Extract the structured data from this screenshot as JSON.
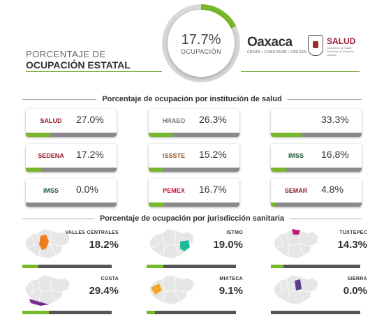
{
  "header": {
    "title_line1": "PORCENTAJE DE",
    "title_line2": "OCUPACIÓN ESTATAL",
    "total_value": "17.7%",
    "total_label": "OCUPACIÓN",
    "total_fraction": 0.177,
    "logo_oaxaca": "Oaxaca",
    "logo_oaxaca_tag": "CREAR • CONSTRUIR • CRECER",
    "logo_salud": "SALUD",
    "logo_salud_sub": "Secretaría de Salud Servicios de Salud de Oaxaca"
  },
  "institutions_heading": "Porcentaje de ocupación por institución de salud",
  "institutions": [
    {
      "logo": "SALUD",
      "logo_color": "#9b1b30",
      "value": "27.0%",
      "fraction": 0.27
    },
    {
      "logo": "HRAEO",
      "logo_color": "#777777",
      "value": "26.3%",
      "fraction": 0.263
    },
    {
      "logo": "",
      "logo_color": "#1f7a3a",
      "value": "33.3%",
      "fraction": 0.333
    },
    {
      "logo": "SEDENA",
      "logo_color": "#9b1b30",
      "value": "17.2%",
      "fraction": 0.172
    },
    {
      "logo": "ISSSTE",
      "logo_color": "#9b5a2a",
      "value": "15.2%",
      "fraction": 0.152
    },
    {
      "logo": "IMSS",
      "logo_color": "#1f5a3a",
      "value": "16.8%",
      "fraction": 0.168
    },
    {
      "logo": "IMSS",
      "logo_color": "#1f5a3a",
      "value": "0.0%",
      "fraction": 0.0
    },
    {
      "logo": "PEMEX",
      "logo_color": "#c8102e",
      "value": "16.7%",
      "fraction": 0.167
    },
    {
      "logo": "SEMAR",
      "logo_color": "#9b1b30",
      "value": "4.8%",
      "fraction": 0.048
    }
  ],
  "regions_heading": "Porcentaje de ocupación por jurisdicción sanitaria",
  "regions": [
    {
      "name": "VALLES CENTRALES",
      "value": "18.2%",
      "fraction": 0.182,
      "color": "#f07d1b"
    },
    {
      "name": "ISTMO",
      "value": "19.0%",
      "fraction": 0.19,
      "color": "#1fb99a"
    },
    {
      "name": "TUXTEPEC",
      "value": "14.3%",
      "fraction": 0.143,
      "color": "#c2187a"
    },
    {
      "name": "COSTA",
      "value": "29.4%",
      "fraction": 0.294,
      "color": "#7b2a8c"
    },
    {
      "name": "MIXTECA",
      "value": "9.1%",
      "fraction": 0.091,
      "color": "#f5a623"
    },
    {
      "name": "SIERRA",
      "value": "0.0%",
      "fraction": 0.0,
      "color": "#5b3a8c"
    }
  ]
}
